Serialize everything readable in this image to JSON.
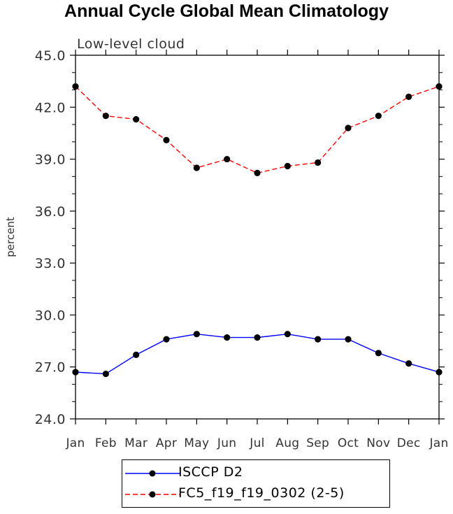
{
  "chart_data": {
    "type": "line",
    "title": "Annual Cycle Global Mean Climatology",
    "subtitle": "Low-level cloud",
    "xlabel": "",
    "ylabel": "percent",
    "categories": [
      "Jan",
      "Feb",
      "Mar",
      "Apr",
      "May",
      "Jun",
      "Jul",
      "Aug",
      "Sep",
      "Oct",
      "Nov",
      "Dec",
      "Jan"
    ],
    "y_ticks": [
      "24.0",
      "27.0",
      "30.0",
      "33.0",
      "36.0",
      "39.0",
      "42.0",
      "45.0"
    ],
    "ylim": [
      24.0,
      45.0
    ],
    "grid": false,
    "legend_position": "bottom",
    "series": [
      {
        "name": "ISCCP D2",
        "color": "#0000ff",
        "line_style": "solid",
        "marker": "filled-circle",
        "values": [
          26.7,
          26.6,
          27.7,
          28.6,
          28.9,
          28.7,
          28.7,
          28.9,
          28.6,
          28.6,
          27.8,
          27.2,
          26.7
        ]
      },
      {
        "name": "FC5_f19_f19_0302 (2-5)",
        "color": "#ff0000",
        "line_style": "dashed",
        "marker": "filled-circle",
        "values": [
          43.2,
          41.5,
          41.3,
          40.1,
          38.5,
          39.0,
          38.2,
          38.6,
          38.8,
          40.8,
          41.5,
          42.6,
          43.2
        ]
      }
    ]
  }
}
